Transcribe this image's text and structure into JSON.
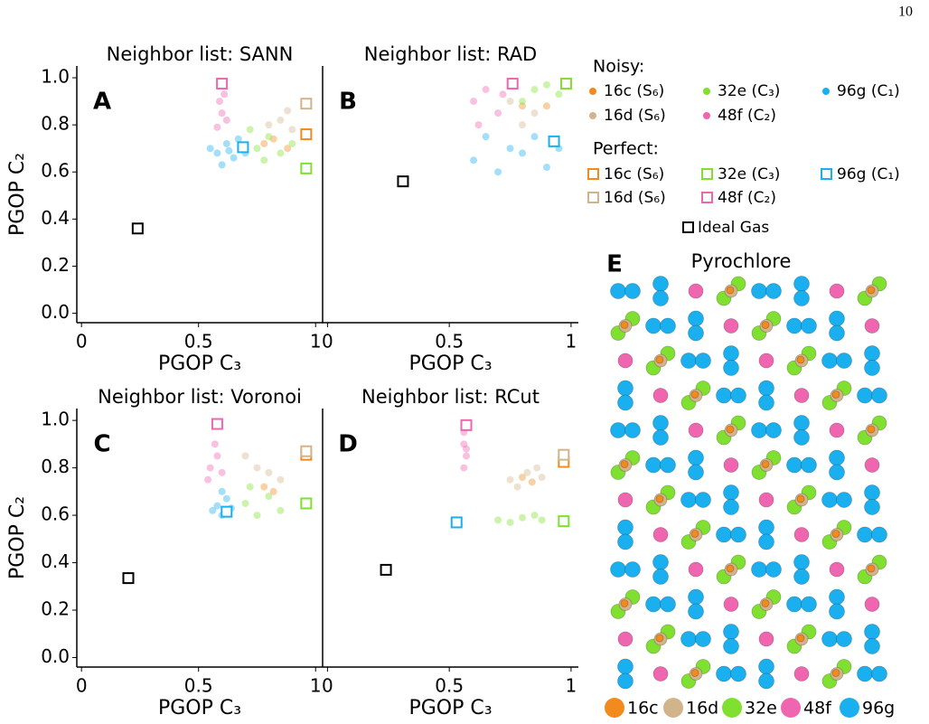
{
  "page_number": "10",
  "chart_data": [
    {
      "type": "scatter",
      "label": "A",
      "title": "Neighbor list: SANN",
      "xlabel": "PGOP C₃",
      "ylabel": "PGOP C₂",
      "xlim": [
        -0.02,
        1.03
      ],
      "ylim": [
        -0.04,
        1.05
      ],
      "xticks": [
        0,
        0.5,
        1
      ],
      "yticks": [
        {
          "value": 0,
          "label": "0.0"
        },
        0.2,
        0.4,
        0.6,
        0.8,
        {
          "value": 1,
          "label": "1.0"
        }
      ],
      "noisy": [
        {
          "x": [
            0.82,
            0.88,
            0.78
          ],
          "y": [
            0.74,
            0.7,
            0.72
          ]
        },
        {
          "x": [
            0.85,
            0.9,
            0.8,
            0.88
          ],
          "y": [
            0.82,
            0.78,
            0.8,
            0.86
          ]
        },
        {
          "x": [
            0.75,
            0.8,
            0.85,
            0.72,
            0.9,
            0.78
          ],
          "y": [
            0.7,
            0.75,
            0.68,
            0.78,
            0.72,
            0.65
          ]
        },
        {
          "x": [
            0.59,
            0.6,
            0.62,
            0.58,
            0.61
          ],
          "y": [
            0.9,
            0.85,
            0.82,
            0.79,
            0.93
          ]
        },
        {
          "x": [
            0.58,
            0.62,
            0.65,
            0.6,
            0.67,
            0.63,
            0.55,
            0.7
          ],
          "y": [
            0.68,
            0.72,
            0.66,
            0.63,
            0.74,
            0.69,
            0.7,
            0.68
          ]
        }
      ],
      "perfect": {
        "x": [
          0.96,
          0.96,
          0.96,
          0.6,
          0.69,
          0.24
        ],
        "y": [
          0.76,
          0.89,
          0.615,
          0.975,
          0.705,
          0.36
        ]
      }
    },
    {
      "type": "scatter",
      "label": "B",
      "title": "Neighbor list: RAD",
      "xlabel": "PGOP C₃",
      "xlim": [
        -0.02,
        1.03
      ],
      "ylim": [
        -0.04,
        1.05
      ],
      "xticks": [
        0,
        0.5,
        1
      ],
      "noisy": [
        {
          "x": [
            0.8,
            0.9
          ],
          "y": [
            0.88,
            0.88
          ]
        },
        {
          "x": [
            0.75,
            0.85,
            0.8
          ],
          "y": [
            0.9,
            0.85,
            0.8
          ]
        },
        {
          "x": [
            0.85,
            0.9,
            0.95,
            0.8
          ],
          "y": [
            0.95,
            0.97,
            0.93,
            0.9
          ]
        },
        {
          "x": [
            0.6,
            0.65,
            0.7,
            0.62,
            0.72
          ],
          "y": [
            0.9,
            0.95,
            0.85,
            0.8,
            0.93
          ]
        },
        {
          "x": [
            0.6,
            0.7,
            0.8,
            0.9,
            0.65,
            0.85,
            0.75,
            0.95
          ],
          "y": [
            0.65,
            0.6,
            0.68,
            0.62,
            0.75,
            0.75,
            0.7,
            0.7
          ]
        }
      ],
      "perfect": {
        "x": [
          0.98,
          0.98,
          0.98,
          0.76,
          0.93,
          0.31
        ],
        "y": [
          0.975,
          0.975,
          0.975,
          0.975,
          0.73,
          0.56
        ]
      }
    },
    {
      "type": "scatter",
      "label": "C",
      "title": "Neighbor list: Voronoi",
      "xlabel": "PGOP C₃",
      "ylabel": "PGOP C₂",
      "xlim": [
        -0.02,
        1.03
      ],
      "ylim": [
        -0.04,
        1.05
      ],
      "xticks": [
        0,
        0.5,
        1
      ],
      "yticks": [
        {
          "value": 0,
          "label": "0.0"
        },
        0.2,
        0.4,
        0.6,
        0.8,
        {
          "value": 1,
          "label": "1.0"
        }
      ],
      "noisy": [
        {
          "x": [
            0.78,
            0.82
          ],
          "y": [
            0.72,
            0.7
          ]
        },
        {
          "x": [
            0.75,
            0.8,
            0.7,
            0.85
          ],
          "y": [
            0.8,
            0.78,
            0.85,
            0.75
          ]
        },
        {
          "x": [
            0.7,
            0.75,
            0.8,
            0.85,
            0.72
          ],
          "y": [
            0.65,
            0.6,
            0.68,
            0.62,
            0.72
          ]
        },
        {
          "x": [
            0.55,
            0.58,
            0.6,
            0.57,
            0.54
          ],
          "y": [
            0.8,
            0.85,
            0.78,
            0.9,
            0.75
          ]
        },
        {
          "x": [
            0.58,
            0.6,
            0.62,
            0.56,
            0.6,
            0.64
          ],
          "y": [
            0.64,
            0.6,
            0.67,
            0.62,
            0.7,
            0.63
          ]
        }
      ],
      "perfect": {
        "x": [
          0.96,
          0.96,
          0.96,
          0.58,
          0.62,
          0.2
        ],
        "y": [
          0.855,
          0.87,
          0.65,
          0.985,
          0.615,
          0.335
        ]
      }
    },
    {
      "type": "scatter",
      "label": "D",
      "title": "Neighbor list: RCut",
      "xlabel": "PGOP C₃",
      "xlim": [
        -0.02,
        1.03
      ],
      "ylim": [
        -0.04,
        1.05
      ],
      "xticks": [
        0,
        0.5,
        1
      ],
      "noisy": [
        {
          "x": [
            0.8,
            0.84
          ],
          "y": [
            0.76,
            0.74
          ]
        },
        {
          "x": [
            0.75,
            0.82,
            0.88,
            0.78,
            0.86
          ],
          "y": [
            0.75,
            0.78,
            0.76,
            0.72,
            0.8
          ]
        },
        {
          "x": [
            0.7,
            0.8,
            0.88,
            0.75,
            0.85
          ],
          "y": [
            0.58,
            0.59,
            0.58,
            0.57,
            0.6
          ]
        },
        {
          "x": [
            0.56,
            0.56,
            0.57,
            0.56,
            0.57
          ],
          "y": [
            0.95,
            0.9,
            0.85,
            0.8,
            0.88
          ]
        },
        {
          "x": [
            0.53,
            0.54,
            0.53
          ],
          "y": [
            0.57,
            0.56,
            0.58
          ]
        }
      ],
      "perfect": {
        "x": [
          0.97,
          0.97,
          0.97,
          0.57,
          0.53,
          0.24
        ],
        "y": [
          0.825,
          0.855,
          0.575,
          0.98,
          0.57,
          0.37
        ]
      }
    }
  ],
  "legend": {
    "noisy_title": "Noisy:",
    "perfect_title": "Perfect:",
    "noisy": [
      {
        "name": "16c (S₆)",
        "color": "#f28a1e"
      },
      {
        "name": "16d (S₆)",
        "color": "#d2b48c"
      },
      {
        "name": "32e (C₃)",
        "color": "#7fe030"
      },
      {
        "name": "48f (C₂)",
        "color": "#f065b0"
      },
      {
        "name": "96g (C₁)",
        "color": "#1ab0f0"
      }
    ],
    "perfect": [
      {
        "name": "16c (S₆)",
        "color": "#f28a1e"
      },
      {
        "name": "16d (S₆)",
        "color": "#d2b48c"
      },
      {
        "name": "32e (C₃)",
        "color": "#7fe030"
      },
      {
        "name": "48f (C₂)",
        "color": "#f065b0"
      },
      {
        "name": "96g (C₁)",
        "color": "#1ab0f0"
      }
    ],
    "ideal_gas": {
      "name": "Ideal Gas",
      "color": "#000000"
    }
  },
  "structure": {
    "label": "E",
    "title": "Pyrochlore",
    "legend": [
      {
        "name": "16c",
        "color": "#f28a1e"
      },
      {
        "name": "16d",
        "color": "#d2b48c"
      },
      {
        "name": "32e",
        "color": "#7fe030"
      },
      {
        "name": "48f",
        "color": "#f065b0"
      },
      {
        "name": "96g",
        "color": "#1ab0f0"
      }
    ]
  }
}
